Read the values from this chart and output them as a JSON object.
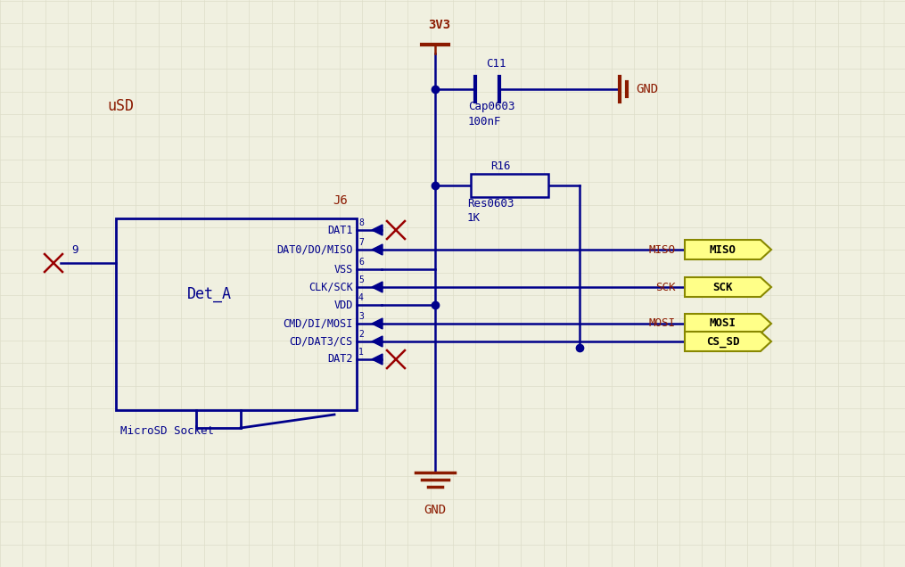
{
  "bg_color": "#f0f0e0",
  "grid_color": "#ddddc8",
  "blue": "#00008b",
  "dark_red": "#8b1a00",
  "yellow_fill": "#ffff88",
  "yellow_edge": "#888800",
  "title": "uSD",
  "component_label": "J6",
  "ic_label": "Det_A",
  "ic_sublabel": "MicroSD Socket",
  "pwr_label": "3V3",
  "gnd_label1": "GND",
  "gnd_label2": "GND",
  "cap_label1": "C11",
  "cap_label2": "Cap0603",
  "cap_label3": "100nF",
  "res_label1": "R16",
  "res_label2": "Res0603",
  "res_label3": "1K",
  "net_miso": "MISO",
  "net_sck": "SCK",
  "net_mosi": "MOSI",
  "conn_miso": "MISO",
  "conn_sck": "SCK",
  "conn_mosi": "MOSI",
  "conn_cs": "CS_SD",
  "pin9_num": "9",
  "pins": [
    {
      "name": "DAT1",
      "num": "8",
      "arrow": true,
      "nc": true,
      "yf": 0.0
    },
    {
      "name": "DAT0/DO/MISO",
      "num": "7",
      "arrow": true,
      "nc": false,
      "yf": 1.0
    },
    {
      "name": "VSS",
      "num": "6",
      "arrow": false,
      "nc": false,
      "yf": 2.0
    },
    {
      "name": "CLK/SCK",
      "num": "5",
      "arrow": true,
      "nc": false,
      "yf": 3.0
    },
    {
      "name": "VDD",
      "num": "4",
      "arrow": false,
      "nc": false,
      "yf": 4.0
    },
    {
      "name": "CMD/DI/MOSI",
      "num": "3",
      "arrow": true,
      "nc": false,
      "yf": 5.0
    },
    {
      "name": "CD/DAT3/CS",
      "num": "2",
      "arrow": true,
      "nc": false,
      "yf": 6.0
    },
    {
      "name": "DAT2",
      "num": "1",
      "arrow": true,
      "nc": true,
      "yf": 7.0
    }
  ]
}
